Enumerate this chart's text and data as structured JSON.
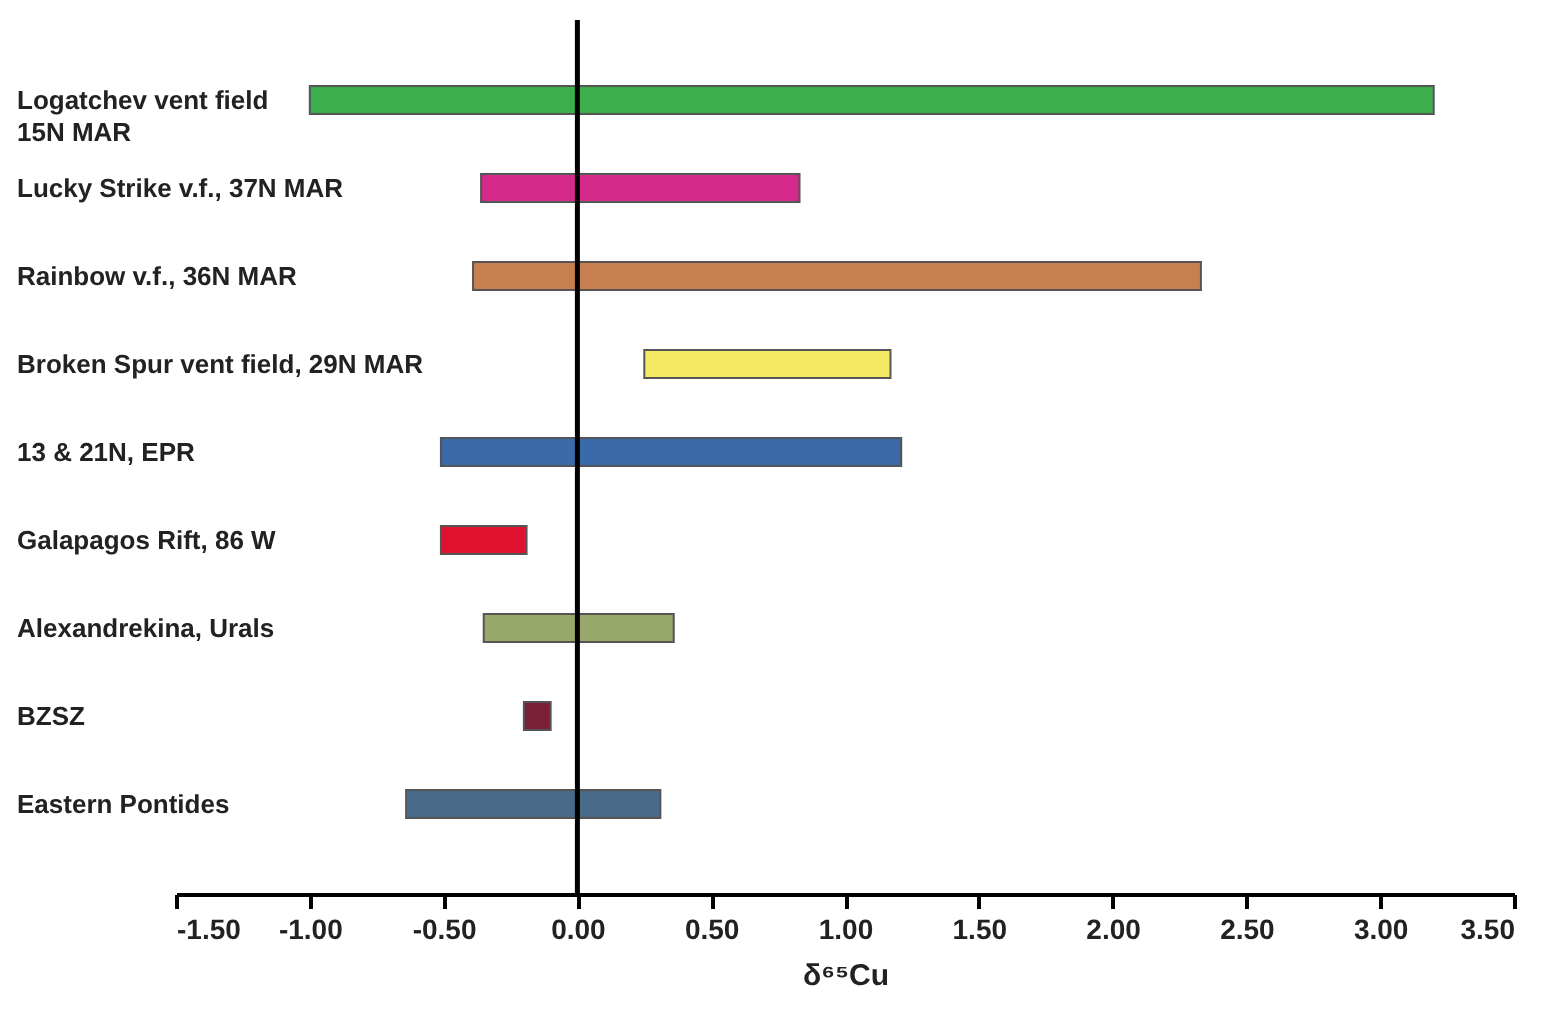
{
  "chart_data": {
    "type": "bar",
    "orientation": "horizontal",
    "xlabel": "δ⁶⁵Cu",
    "categories": [
      "Logatchev vent field\n15N MAR",
      "Lucky Strike v.f., 37N MAR",
      "Rainbow v.f., 36N MAR",
      "Broken Spur vent field, 29N MAR",
      "13 & 21N, EPR",
      "Galapagos Rift, 86 W",
      "Alexandrekina, Urals",
      "BZSZ",
      "Eastern Pontides"
    ],
    "base": [
      -1.0,
      -0.36,
      -0.39,
      0.25,
      -0.51,
      -0.51,
      -0.35,
      -0.2,
      -0.64
    ],
    "values": [
      4.2,
      1.19,
      2.72,
      0.92,
      1.72,
      0.32,
      0.71,
      0.1,
      0.95
    ],
    "colors": [
      "#3cae4c",
      "#d42a8a",
      "#c68050",
      "#f3e962",
      "#3b6aa8",
      "#e0112f",
      "#97a86a",
      "#7a1f35",
      "#4a6a8a"
    ],
    "xlim": [
      -1.5,
      3.5
    ],
    "xticks": [
      {
        "value": -1.5,
        "label": "-1.50"
      },
      {
        "value": -1.0,
        "label": "-1.00"
      },
      {
        "value": -0.5,
        "label": "-0.50"
      },
      {
        "value": 0,
        "label": "0.00"
      },
      {
        "value": 0.5,
        "label": "0.50"
      },
      {
        "value": 1.0,
        "label": "1.00"
      },
      {
        "value": 1.5,
        "label": "1.50"
      },
      {
        "value": 2.0,
        "label": "2.00"
      },
      {
        "value": 2.5,
        "label": "2.50"
      },
      {
        "value": 3.0,
        "label": "3.00"
      },
      {
        "value": 3.5,
        "label": "3.50"
      }
    ],
    "ref_lines": [
      {
        "axis": "x",
        "value": 0,
        "color": "#000000"
      }
    ],
    "grid": false
  }
}
